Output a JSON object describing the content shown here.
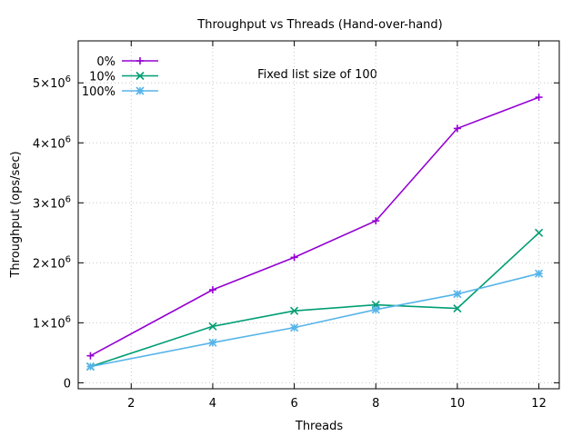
{
  "chart_data": {
    "type": "line",
    "title": "Throughput vs Threads (Hand-over-hand)",
    "xlabel": "Threads",
    "ylabel": "Throughput (ops/sec)",
    "annotation": "Fixed list size of 100",
    "xlim": [
      0.7,
      12.5
    ],
    "ylim": [
      -100000,
      5700000
    ],
    "xticks": [
      2,
      4,
      6,
      8,
      10,
      12
    ],
    "xtick_labels": [
      "2",
      "4",
      "6",
      "8",
      "10",
      "12"
    ],
    "yticks": [
      0,
      1000000,
      2000000,
      3000000,
      4000000,
      5000000
    ],
    "ytick_labels": [
      {
        "base": "0",
        "exp": ""
      },
      {
        "base": "1×10",
        "exp": "6"
      },
      {
        "base": "2×10",
        "exp": "6"
      },
      {
        "base": "3×10",
        "exp": "6"
      },
      {
        "base": "4×10",
        "exp": "6"
      },
      {
        "base": "5×10",
        "exp": "6"
      }
    ],
    "grid": true,
    "legend_position": "top-left",
    "x": [
      1,
      4,
      6,
      8,
      10,
      12
    ],
    "series": [
      {
        "name": "0%",
        "color": "#9400d3",
        "marker": "plus",
        "values": [
          450000,
          1550000,
          2090000,
          2700000,
          4240000,
          4760000
        ]
      },
      {
        "name": "10%",
        "color": "#009e73",
        "marker": "cross",
        "values": [
          270000,
          940000,
          1200000,
          1300000,
          1240000,
          2500000
        ]
      },
      {
        "name": "100%",
        "color": "#56b4e9",
        "marker": "star",
        "values": [
          270000,
          670000,
          920000,
          1220000,
          1480000,
          1820000
        ]
      }
    ]
  }
}
